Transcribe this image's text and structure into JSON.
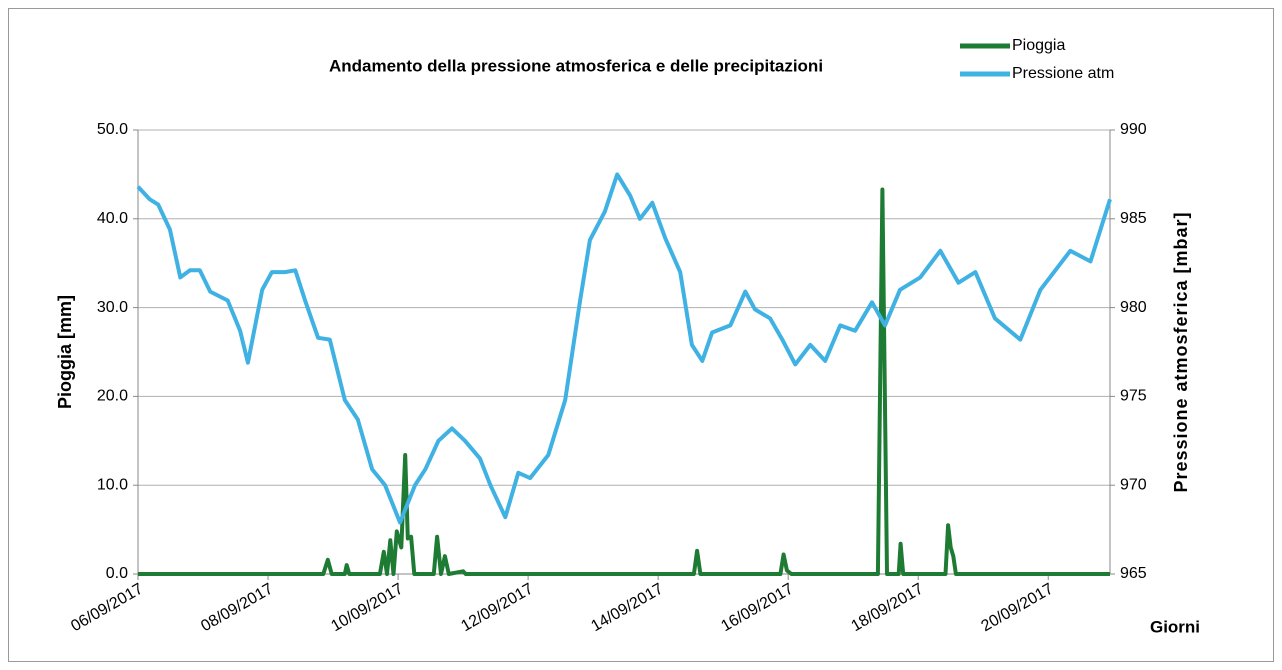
{
  "chart_data": {
    "type": "line",
    "title": "Andamento della pressione atmosferica e delle precipitazioni",
    "xlabel": "Giorni",
    "ylabel": "Pioggia [mm]",
    "y2label": "Pressione atmosferica [mbar]",
    "xlim": [
      6,
      20.95
    ],
    "xticks": [
      {
        "value": 6,
        "label": "06/09/2017"
      },
      {
        "value": 8,
        "label": "08/09/2017"
      },
      {
        "value": 10,
        "label": "10/09/2017"
      },
      {
        "value": 12,
        "label": "12/09/2017"
      },
      {
        "value": 14,
        "label": "14/09/2017"
      },
      {
        "value": 16,
        "label": "16/09/2017"
      },
      {
        "value": 18,
        "label": "18/09/2017"
      },
      {
        "value": 20,
        "label": "20/09/2017"
      }
    ],
    "ylim": [
      0,
      50
    ],
    "yticks": [
      {
        "value": 0,
        "label": "0.0"
      },
      {
        "value": 10,
        "label": "10.0"
      },
      {
        "value": 20,
        "label": "20.0"
      },
      {
        "value": 30,
        "label": "30.0"
      },
      {
        "value": 40,
        "label": "40.0"
      },
      {
        "value": 50,
        "label": "50.0"
      }
    ],
    "y2lim": [
      965,
      990
    ],
    "y2ticks": [
      965,
      970,
      975,
      980,
      985,
      990
    ],
    "grid": true,
    "legend": "top-right",
    "series": [
      {
        "name": "Pioggia",
        "color": "#1e7b34",
        "axis": "y",
        "x": [
          6,
          8.85,
          8.92,
          8.98,
          9.18,
          9.21,
          9.25,
          9.72,
          9.78,
          9.83,
          9.88,
          9.93,
          9.98,
          10.05,
          10.11,
          10.15,
          10.2,
          10.25,
          10.55,
          10.6,
          10.66,
          10.72,
          10.78,
          11.0,
          11.04,
          14.55,
          14.6,
          14.65,
          15.88,
          15.93,
          15.98,
          16.05,
          17.38,
          17.45,
          17.52,
          17.7,
          17.73,
          17.77,
          18.42,
          18.46,
          18.5,
          18.54,
          18.58,
          20.95
        ],
        "values": [
          0,
          0,
          1.6,
          0,
          0,
          1.0,
          0,
          0,
          2.5,
          0,
          3.8,
          0,
          4.8,
          3,
          13.4,
          4,
          4.2,
          0,
          0,
          4.2,
          0,
          2,
          0,
          0.3,
          0,
          0,
          2.6,
          0,
          0,
          2.2,
          0.4,
          0,
          0,
          43.3,
          0,
          0,
          3.4,
          0,
          0,
          5.5,
          3.0,
          2.0,
          0,
          0
        ]
      },
      {
        "name": "Pressione atm",
        "color": "#3fb1e3",
        "axis": "y2",
        "x": [
          6.0,
          6.18,
          6.31,
          6.49,
          6.65,
          6.8,
          6.95,
          7.11,
          7.38,
          7.57,
          7.69,
          7.91,
          8.06,
          8.26,
          8.42,
          8.57,
          8.77,
          8.95,
          9.18,
          9.38,
          9.6,
          9.8,
          10.03,
          10.26,
          10.42,
          10.62,
          10.83,
          11.03,
          11.26,
          11.42,
          11.65,
          11.85,
          12.03,
          12.31,
          12.57,
          12.8,
          12.95,
          13.18,
          13.37,
          13.57,
          13.72,
          13.91,
          14.11,
          14.34,
          14.52,
          14.68,
          14.83,
          15.11,
          15.34,
          15.49,
          15.72,
          15.91,
          16.11,
          16.34,
          16.57,
          16.8,
          17.03,
          17.29,
          17.49,
          17.72,
          18.03,
          18.34,
          18.62,
          18.88,
          19.18,
          19.57,
          19.88,
          20.34,
          20.65,
          20.95
        ],
        "values": [
          986.8,
          986.1,
          985.8,
          984.4,
          981.7,
          982.1,
          982.1,
          980.9,
          980.4,
          978.7,
          976.9,
          981.0,
          982.0,
          982.0,
          982.1,
          980.4,
          978.3,
          978.2,
          974.8,
          973.7,
          970.9,
          970.0,
          967.9,
          970.0,
          970.9,
          972.5,
          973.2,
          972.5,
          971.5,
          970.0,
          968.2,
          970.7,
          970.4,
          971.7,
          974.8,
          980.4,
          983.8,
          985.4,
          987.5,
          986.3,
          985.0,
          985.9,
          983.9,
          982.0,
          977.9,
          977.0,
          978.6,
          979.0,
          980.9,
          979.9,
          979.4,
          978.2,
          976.8,
          977.9,
          977.0,
          979.0,
          978.7,
          980.3,
          979.0,
          981.0,
          981.7,
          983.2,
          981.4,
          982.0,
          979.4,
          978.2,
          981.0,
          983.2,
          982.6,
          986.1
        ]
      }
    ]
  }
}
